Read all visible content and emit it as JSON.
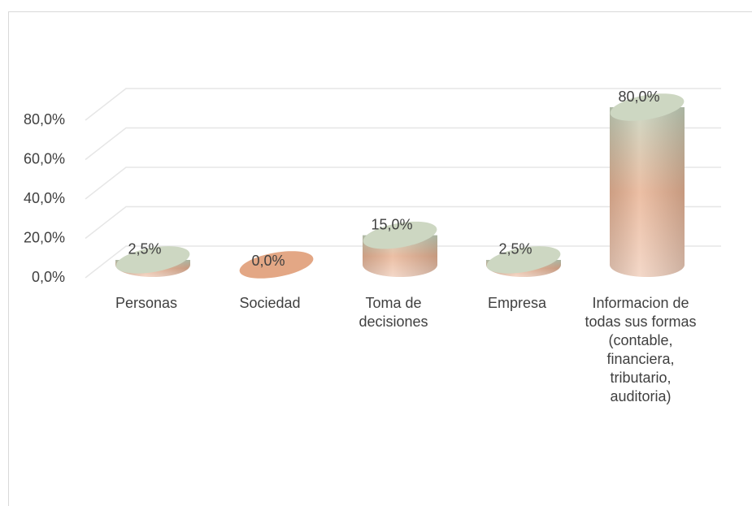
{
  "chart_data": {
    "type": "bar3d",
    "categories": [
      "Personas",
      "Sociedad",
      "Toma de decisiones",
      "Empresa",
      "Informacion de todas sus formas (contable, financiera, tributario, auditoria)"
    ],
    "values": [
      2.5,
      0,
      15,
      2.5,
      80
    ],
    "value_labels": [
      "2,5%",
      "0,0%",
      "15,0%",
      "2,5%",
      "80,0%"
    ],
    "ylim": [
      0,
      80
    ],
    "yticks": [
      {
        "value": 0,
        "label": "0,0%"
      },
      {
        "value": 20,
        "label": "20,0%"
      },
      {
        "value": 40,
        "label": "40,0%"
      },
      {
        "value": 60,
        "label": "60,0%"
      },
      {
        "value": 80,
        "label": "80,0%"
      }
    ],
    "grid": true
  }
}
